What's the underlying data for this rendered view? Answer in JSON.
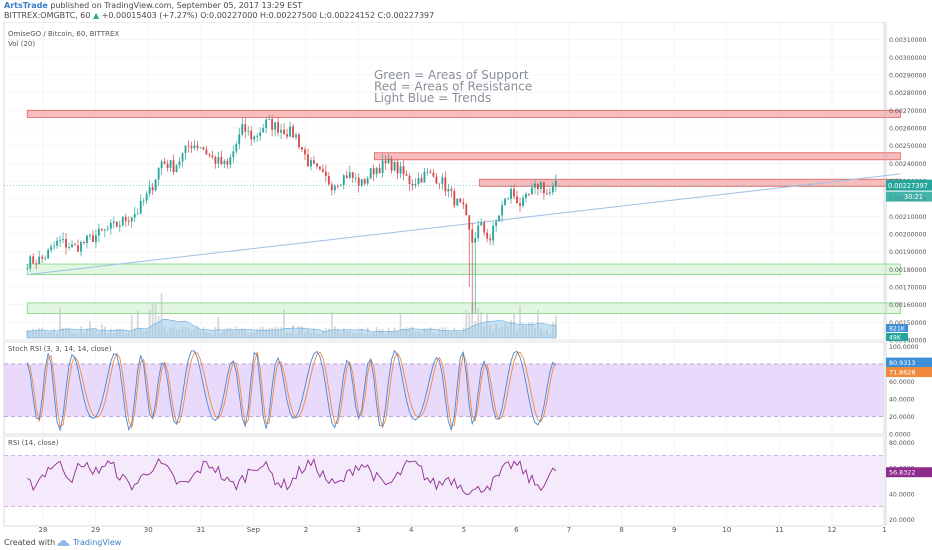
{
  "header": {
    "author": "ArtsTrade",
    "published_text": "published on TradingView.com, September 05, 2017 13:29 EST",
    "symbol_line": "BITTREX:OMGBTC, 60",
    "change_arrow": "▲",
    "change": "+0.00015403 (+7.27%)",
    "ohlc": "O:0.00227000 H:0.00227500 L:0.00224152 C:0.00227397"
  },
  "footer": {
    "created_with": "Created with",
    "brand": "TradingView",
    "logo_icon": "tradingview-cloud-icon"
  },
  "colors": {
    "up": "#26a69a",
    "down": "#d64b4b",
    "support": "#7ed37e",
    "resistance": "#e06060",
    "trend": "#9fbfe6",
    "stoch_k": "#4b86d6",
    "stoch_d": "#ef8a3c",
    "rsi": "#8e2c8e",
    "stoch_bg": "#e2ccf8",
    "rsi_bg": "#f3e8fc"
  },
  "chart_data": [
    {
      "type": "candlestick",
      "title": "OmiseGO / Bitcoin, 60, BITTREX",
      "volume_label": "Vol (20)",
      "annotations": [
        "Green = Areas of Support",
        "Red =  Areas of Resistance",
        "Light Blue = Trends"
      ],
      "price_axis": {
        "ylim": [
          0.0014,
          0.0032
        ],
        "ticks": [
          "0.00310000",
          "0.00300000",
          "0.00290000",
          "0.00280000",
          "0.00270000",
          "0.00260000",
          "0.00250000",
          "0.00240000",
          "0.00230000",
          "0.00220000",
          "0.00210000",
          "0.00200000",
          "0.00190000",
          "0.00180000",
          "0.00170000",
          "0.00160000",
          "0.00150000",
          "0.00140000"
        ],
        "tick_values": [
          0.0031,
          0.003,
          0.0029,
          0.0028,
          0.0027,
          0.0026,
          0.0025,
          0.0024,
          0.0023,
          0.0022,
          0.0021,
          0.002,
          0.0019,
          0.0018,
          0.0017,
          0.0016,
          0.0015,
          0.0014
        ],
        "last_price_label": "0.00227397",
        "countdown_label": "30:21",
        "volume_labels": [
          "821K",
          "49K"
        ]
      },
      "x_axis": {
        "labels": [
          "28",
          "29",
          "30",
          "31",
          "Sep",
          "2",
          "3",
          "4",
          "5",
          "6",
          "7",
          "8",
          "9",
          "10",
          "11",
          "12",
          "1"
        ],
        "label_day_index": [
          0,
          1,
          2,
          3,
          4,
          5,
          6,
          7,
          8,
          9,
          10,
          11,
          12,
          13,
          14,
          15,
          16
        ]
      },
      "resistance_zones": [
        {
          "from_day": -0.3,
          "to_day": 16.3,
          "low": 0.00266,
          "high": 0.0027
        },
        {
          "from_day": 6.3,
          "to_day": 16.3,
          "low": 0.00242,
          "high": 0.00246
        },
        {
          "from_day": 8.3,
          "to_day": 16.3,
          "low": 0.00227,
          "high": 0.00231
        }
      ],
      "support_zones": [
        {
          "from_day": -0.3,
          "to_day": 16.3,
          "low": 0.00177,
          "high": 0.00183
        },
        {
          "from_day": -0.3,
          "to_day": 16.3,
          "low": 0.00155,
          "high": 0.00161
        }
      ],
      "trend_line": {
        "from": {
          "day": -0.3,
          "price": 0.00177
        },
        "to": {
          "day": 16.3,
          "price": 0.00234
        }
      },
      "close_path_keypoints": [
        [
          -0.3,
          0.00184
        ],
        [
          0.0,
          0.00186
        ],
        [
          0.3,
          0.00196
        ],
        [
          0.6,
          0.00192
        ],
        [
          1.0,
          0.00199
        ],
        [
          1.4,
          0.00205
        ],
        [
          1.8,
          0.00213
        ],
        [
          2.05,
          0.00225
        ],
        [
          2.25,
          0.00241
        ],
        [
          2.5,
          0.00238
        ],
        [
          2.8,
          0.00251
        ],
        [
          3.0,
          0.0025
        ],
        [
          3.2,
          0.00243
        ],
        [
          3.5,
          0.00238
        ],
        [
          3.8,
          0.0026
        ],
        [
          4.0,
          0.00254
        ],
        [
          4.25,
          0.00263
        ],
        [
          4.5,
          0.0026
        ],
        [
          4.8,
          0.00256
        ],
        [
          5.05,
          0.0024
        ],
        [
          5.3,
          0.00233
        ],
        [
          5.5,
          0.00228
        ],
        [
          5.8,
          0.00234
        ],
        [
          6.05,
          0.00228
        ],
        [
          6.3,
          0.00237
        ],
        [
          6.6,
          0.0024
        ],
        [
          6.8,
          0.00235
        ],
        [
          7.0,
          0.00229
        ],
        [
          7.3,
          0.00234
        ],
        [
          7.55,
          0.00231
        ],
        [
          7.8,
          0.0022
        ],
        [
          8.0,
          0.00213
        ],
        [
          8.15,
          0.00195
        ],
        [
          8.3,
          0.00205
        ],
        [
          8.5,
          0.00197
        ],
        [
          8.7,
          0.00214
        ],
        [
          8.9,
          0.00224
        ],
        [
          9.1,
          0.00216
        ],
        [
          9.25,
          0.00222
        ],
        [
          9.45,
          0.00229
        ],
        [
          9.6,
          0.00222
        ],
        [
          9.75,
          0.00227
        ]
      ],
      "stoch_rsi": {
        "label": "Stoch RSI (3, 3, 14, 14, close)",
        "ylim": [
          0,
          105
        ],
        "ticks": [
          "100.0000",
          "80.0000",
          "60.0000",
          "40.0000",
          "20.0000",
          "0.0000"
        ],
        "tick_values": [
          100,
          80,
          60,
          40,
          20,
          0
        ],
        "band": [
          20,
          80
        ],
        "k_label": "80.9313",
        "d_label": "71.8628"
      },
      "rsi": {
        "label": "RSI (14, close)",
        "ylim": [
          15,
          85
        ],
        "ticks": [
          "80.0000",
          "60.0000",
          "40.0000",
          "20.0000"
        ],
        "tick_values": [
          80,
          60,
          40,
          20
        ],
        "band": [
          30,
          70
        ],
        "value_label": "56.8322"
      }
    }
  ]
}
